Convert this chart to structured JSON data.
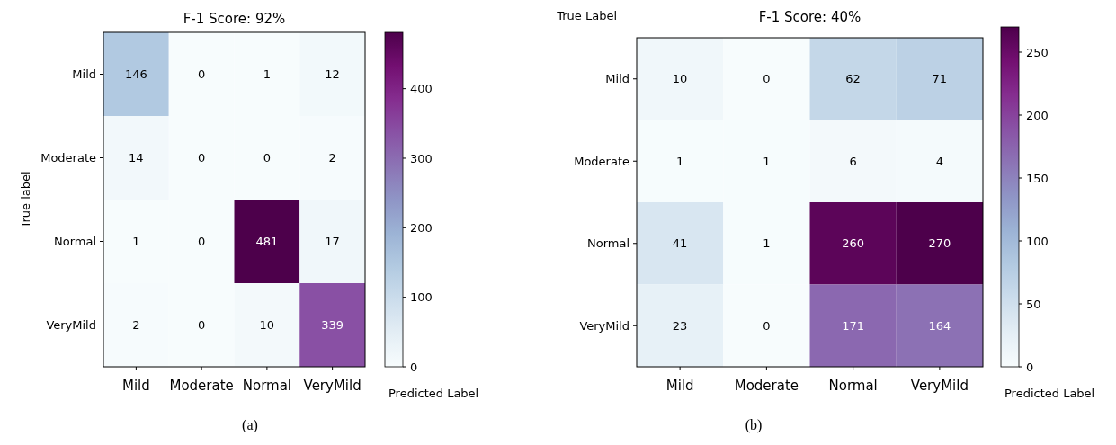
{
  "chart_data": [
    {
      "type": "heatmap",
      "title": "F-1 Score: 92%",
      "xlabel": "Predicted Label",
      "ylabel": "True label",
      "categories": [
        "Mild",
        "Moderate",
        "Normal",
        "VeryMild"
      ],
      "y_categories": [
        "Mild",
        "Moderate",
        "Normal",
        "VeryMild"
      ],
      "cells": [
        [
          146,
          0,
          1,
          12
        ],
        [
          14,
          0,
          0,
          2
        ],
        [
          1,
          0,
          481,
          17
        ],
        [
          2,
          0,
          10,
          339
        ]
      ],
      "clim": [
        0,
        481
      ],
      "data_labels": true,
      "cticks": [
        0,
        100,
        200,
        300,
        400
      ],
      "annotations": [
        "(a)"
      ]
    },
    {
      "type": "heatmap",
      "title": "F-1 Score: 40%",
      "xlabel": "Predicted Label",
      "ylabel": "True Label",
      "categories": [
        "Mild",
        "Moderate",
        "Normal",
        "VeryMild"
      ],
      "y_categories": [
        "Mild",
        "Moderate",
        "Normal",
        "VeryMild"
      ],
      "cells": [
        [
          10,
          0,
          62,
          71
        ],
        [
          1,
          1,
          6,
          4
        ],
        [
          41,
          1,
          260,
          270
        ],
        [
          23,
          0,
          171,
          164
        ]
      ],
      "clim": [
        0,
        270
      ],
      "data_labels": true,
      "cticks": [
        0,
        50,
        100,
        150,
        200,
        250
      ],
      "annotations": [
        "(b)"
      ]
    }
  ]
}
